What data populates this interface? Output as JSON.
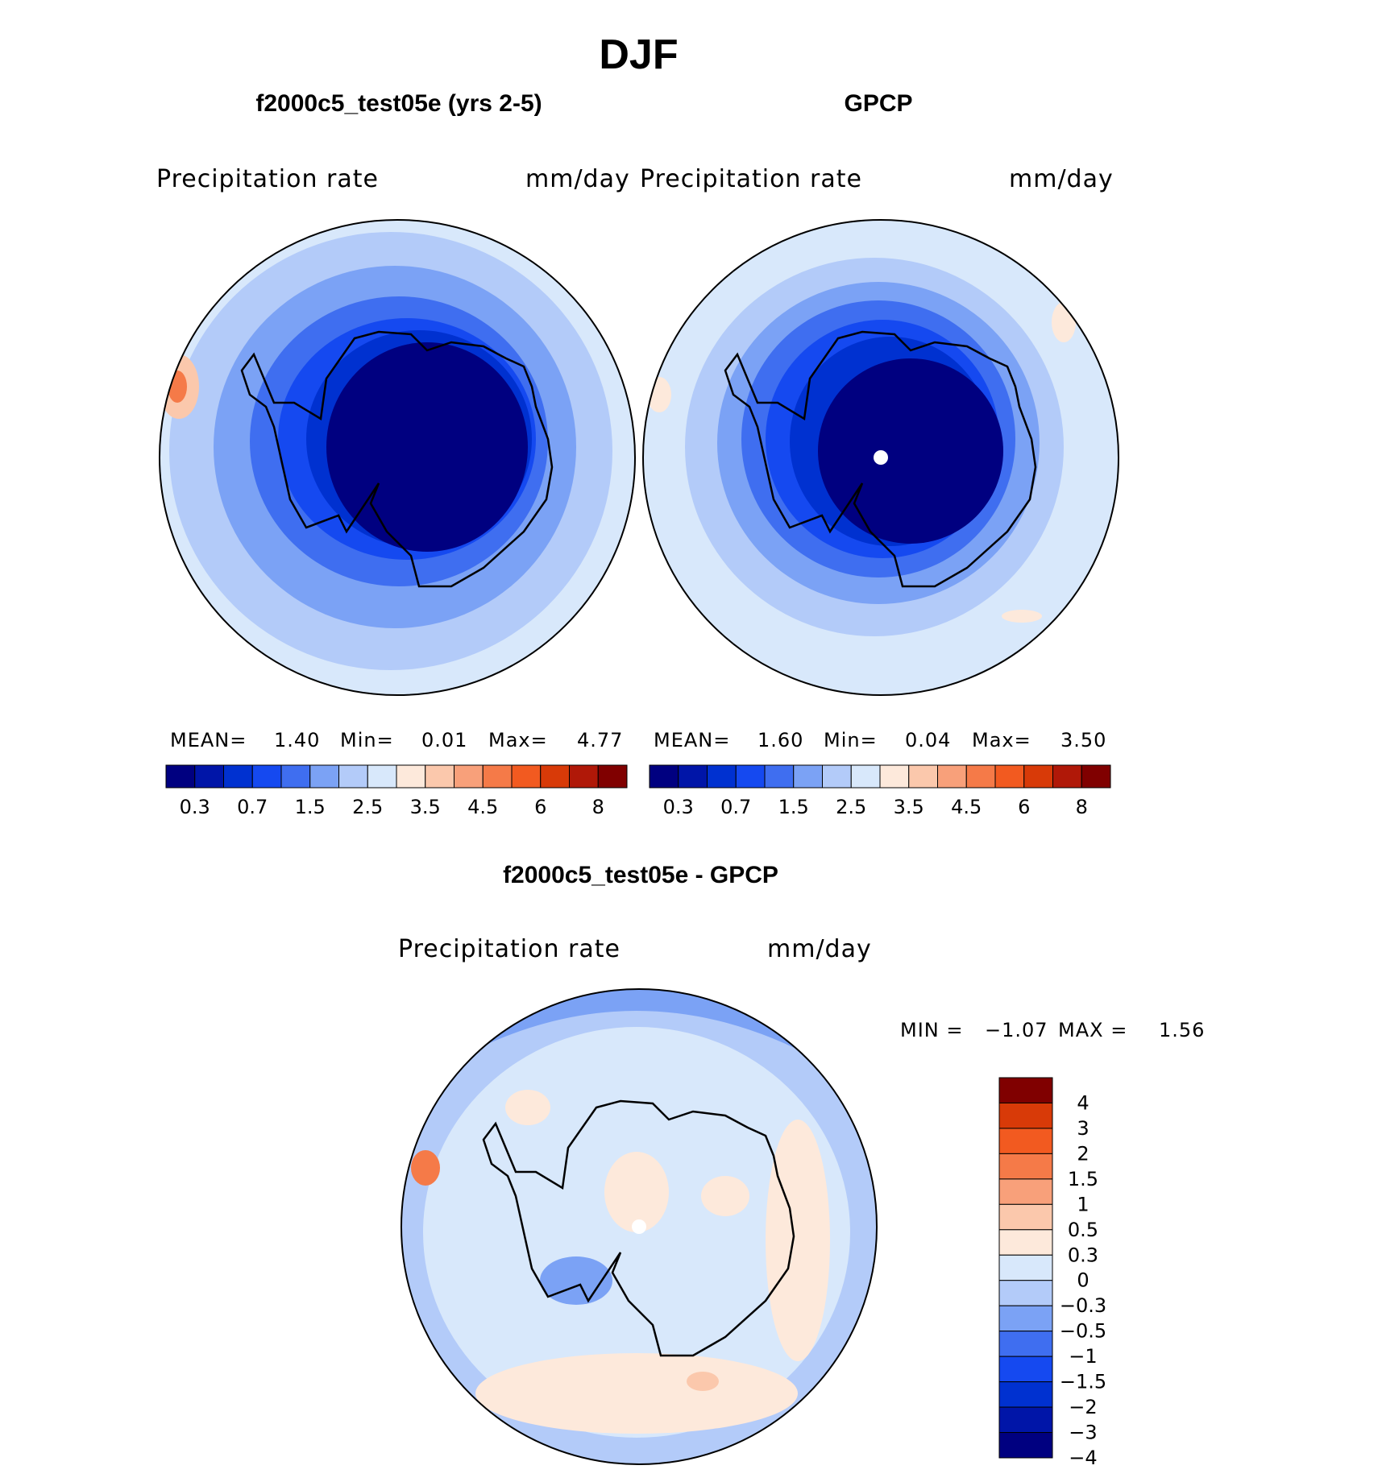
{
  "chart_data": {
    "title": "DJF",
    "colors": {
      "levels14": [
        "#000080",
        "#0015a8",
        "#0031d0",
        "#1549f0",
        "#3f6ef0",
        "#7ba2f5",
        "#b3cbf9",
        "#d8e8fb",
        "#fde9db",
        "#fbc8ac",
        "#f8a07a",
        "#f57a48",
        "#f25a20",
        "#d83a08",
        "#b01808",
        "#800000"
      ],
      "diff13": [
        "#000080",
        "#0015a8",
        "#0031d0",
        "#1549f0",
        "#3f6ef0",
        "#7ba2f5",
        "#b3cbf9",
        "#d8e8fb",
        "#fde9db",
        "#fbc8ac",
        "#f8a07a",
        "#f57a48",
        "#f25a20",
        "#d83a08",
        "#800000"
      ]
    },
    "panels": [
      {
        "id": "model",
        "type": "polar-contour",
        "title": "f2000c5_test05e (yrs 2-5)",
        "left_label": "Precipitation  rate",
        "right_label": "mm/day",
        "stats": {
          "mean_label": "MEAN=",
          "mean": "1.40",
          "min_label": "Min=",
          "min": "0.01",
          "max_label": "Max=",
          "max": "4.77"
        },
        "colorbar_ticks": [
          "0.3",
          "0.7",
          "1.5",
          "2.5",
          "3.5",
          "4.5",
          "6",
          "8"
        ]
      },
      {
        "id": "obs",
        "type": "polar-contour",
        "title": "GPCP",
        "left_label": "Precipitation  rate",
        "right_label": "mm/day",
        "stats": {
          "mean_label": "MEAN=",
          "mean": "1.60",
          "min_label": "Min=",
          "min": "0.04",
          "max_label": "Max=",
          "max": "3.50"
        },
        "colorbar_ticks": [
          "0.3",
          "0.7",
          "1.5",
          "2.5",
          "3.5",
          "4.5",
          "6",
          "8"
        ]
      },
      {
        "id": "diff",
        "type": "polar-contour",
        "title": "f2000c5_test05e - GPCP",
        "left_label": "Precipitation  rate",
        "right_label": "mm/day",
        "stats": {
          "min_label": "MIN  =",
          "min": "−1.07",
          "max_label": "MAX  =",
          "max": "1.56"
        },
        "colorbar_ticks": [
          "4",
          "3",
          "2",
          "1.5",
          "1",
          "0.5",
          "0.3",
          "0",
          "−0.3",
          "−0.5",
          "−1",
          "−1.5",
          "−2",
          "−3",
          "−4"
        ]
      }
    ]
  }
}
